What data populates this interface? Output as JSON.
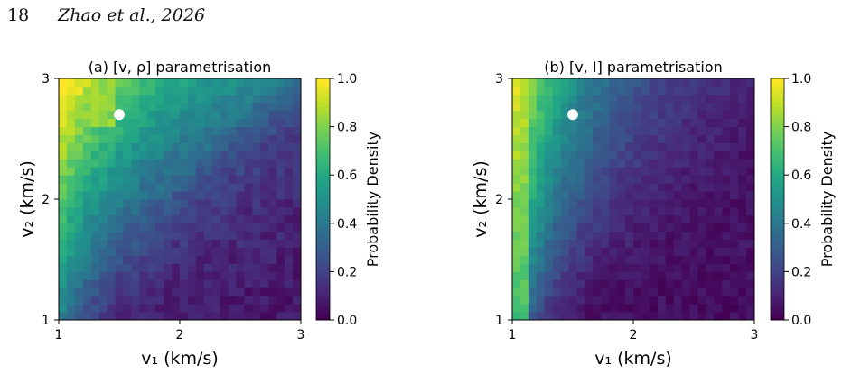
{
  "header": {
    "page_number": "18",
    "running_head": "Zhao et al., 2026"
  },
  "chart_data": [
    {
      "type": "heatmap",
      "title": "(a) [v, ρ] parametrisation",
      "xlabel": "v₁ (km/s)",
      "ylabel": "v₂ (km/s)",
      "xlim": [
        1,
        3
      ],
      "ylim": [
        1,
        3
      ],
      "xticks": [
        "1",
        "2",
        "3"
      ],
      "yticks": [
        "1",
        "2",
        "3"
      ],
      "grid_cells": [
        30,
        30
      ],
      "density_model": {
        "form": "exp(-((v2 - v1 - d0) / w)^2) + ridge",
        "d0": 1.7,
        "w_base": 0.75,
        "w_slope": 0.1,
        "scale": 1.0,
        "noise": 0.05
      },
      "marker": {
        "v1": 1.5,
        "v2": 2.7,
        "color": "#ffffff"
      },
      "colorbar": {
        "label": "Probability Density",
        "ticks": [
          "0.0",
          "0.2",
          "0.4",
          "0.6",
          "0.8",
          "1.0"
        ],
        "range": [
          0,
          1
        ],
        "colormap": "viridis"
      },
      "grid": false
    },
    {
      "type": "heatmap",
      "title": "(b) [v, I] parametrisation",
      "xlabel": "v₁ (km/s)",
      "ylabel": "v₂ (km/s)",
      "xlim": [
        1,
        3
      ],
      "ylim": [
        1,
        3
      ],
      "xticks": [
        "1",
        "2",
        "3"
      ],
      "yticks": [
        "1",
        "2",
        "3"
      ],
      "grid_cells": [
        30,
        30
      ],
      "density_model": {
        "form": "exp(-(v1 - 1)/(0.15 + 0.55*(v2-1)/2)) mixed with band",
        "d0": 1.0,
        "w_base": 0.15,
        "w_slope": 0.55,
        "scale": 1.0,
        "noise": 0.04
      },
      "marker": {
        "v1": 1.5,
        "v2": 2.7,
        "color": "#ffffff"
      },
      "colorbar": {
        "label": "Probability Density",
        "ticks": [
          "0.0",
          "0.2",
          "0.4",
          "0.6",
          "0.8",
          "1.0"
        ],
        "range": [
          0,
          1
        ],
        "colormap": "viridis"
      },
      "grid": false
    }
  ],
  "colors": {
    "viridis_low": "#440154",
    "viridis_mid": "#21918c",
    "viridis_high": "#fde725"
  }
}
